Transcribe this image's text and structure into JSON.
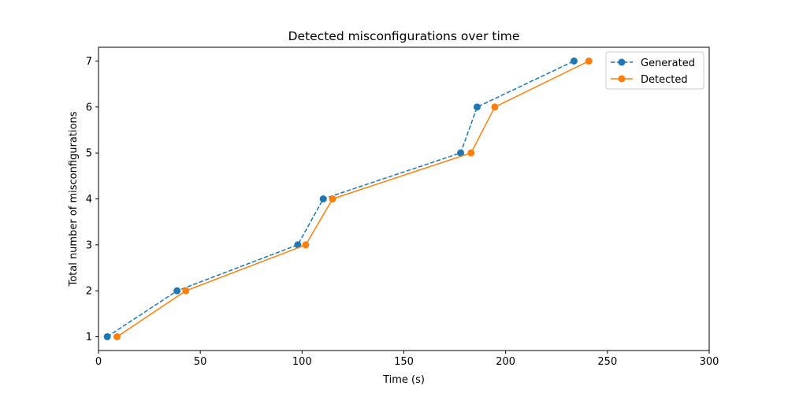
{
  "chart_data": {
    "type": "line",
    "title": "Detected misconfigurations over time",
    "xlabel": "Time (s)",
    "ylabel": "Total number of misconfigurations",
    "xlim": [
      0,
      300
    ],
    "ylim": [
      0.7,
      7.3
    ],
    "x_ticks": [
      0,
      50,
      100,
      150,
      200,
      250,
      300
    ],
    "y_ticks": [
      1,
      2,
      3,
      4,
      5,
      6,
      7
    ],
    "grid": false,
    "legend_position": "top-right",
    "series": [
      {
        "name": "Generated",
        "color": "#1f77b4",
        "line_style": "dashed",
        "marker": "circle",
        "x": [
          4.3,
          38.6,
          97.9,
          110.4,
          177.9,
          186.0,
          233.6
        ],
        "y": [
          1,
          2,
          3,
          4,
          5,
          6,
          7
        ]
      },
      {
        "name": "Detected",
        "color": "#ff7f0e",
        "line_style": "solid",
        "marker": "circle",
        "x": [
          9.1,
          42.9,
          101.8,
          115.0,
          183.0,
          194.7,
          240.9
        ],
        "y": [
          1,
          2,
          3,
          4,
          5,
          6,
          7
        ]
      }
    ]
  }
}
